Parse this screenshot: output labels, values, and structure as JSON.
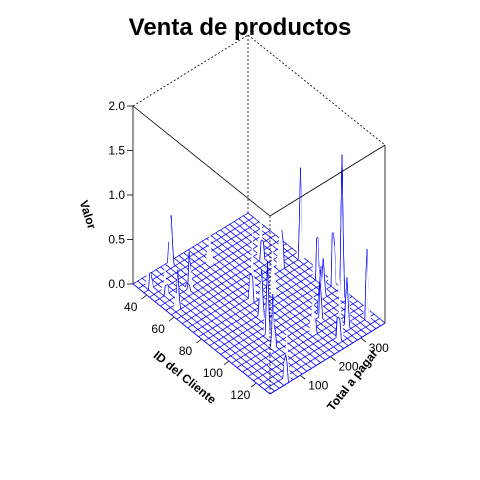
{
  "chart_data": {
    "type": "surface3d",
    "title": "Venta de productos",
    "xlabel": "ID del Cliente",
    "ylabel": "Total a pagar",
    "zlabel": "Valor",
    "xlim": [
      30,
      130
    ],
    "ylim": [
      0,
      380
    ],
    "zlim": [
      0,
      2
    ],
    "x_ticks": [
      40,
      60,
      80,
      100,
      120
    ],
    "y_ticks": [
      100,
      200,
      300
    ],
    "z_ticks": [
      "0.0",
      "0.5",
      "1.0",
      "1.5",
      "2.0"
    ],
    "grid_nx": 25,
    "grid_ny": 25,
    "colors": {
      "mesh": "#0000ff",
      "box": "#000000"
    },
    "peaks": [
      {
        "x": 37,
        "y": 22,
        "z": 0.6
      },
      {
        "x": 45,
        "y": 38,
        "z": 0.35
      },
      {
        "x": 56,
        "y": 30,
        "z": 0.45
      },
      {
        "x": 50,
        "y": 96,
        "z": 0.5
      },
      {
        "x": 31,
        "y": 120,
        "z": 0.75
      },
      {
        "x": 44,
        "y": 190,
        "z": 0.45
      },
      {
        "x": 57,
        "y": 300,
        "z": 0.7
      },
      {
        "x": 76,
        "y": 186,
        "z": 0.9
      },
      {
        "x": 95,
        "y": 336,
        "z": 0.55
      },
      {
        "x": 68,
        "y": 316,
        "z": 1.0
      },
      {
        "x": 98,
        "y": 136,
        "z": 0.95
      },
      {
        "x": 87,
        "y": 166,
        "z": 0.65
      },
      {
        "x": 106,
        "y": 118,
        "z": 0.6
      },
      {
        "x": 70,
        "y": 372,
        "z": 1.1
      },
      {
        "x": 85,
        "y": 356,
        "z": 1.55
      },
      {
        "x": 93,
        "y": 372,
        "z": 1.95
      },
      {
        "x": 102,
        "y": 364,
        "z": 1.85
      },
      {
        "x": 122,
        "y": 356,
        "z": 1.0
      },
      {
        "x": 119,
        "y": 306,
        "z": 0.85
      },
      {
        "x": 123,
        "y": 262,
        "z": 0.7
      },
      {
        "x": 106,
        "y": 276,
        "z": 0.75
      },
      {
        "x": 112,
        "y": 224,
        "z": 0.55
      },
      {
        "x": 80,
        "y": 236,
        "z": 0.7
      },
      {
        "x": 128,
        "y": 64,
        "z": 0.7
      }
    ]
  }
}
